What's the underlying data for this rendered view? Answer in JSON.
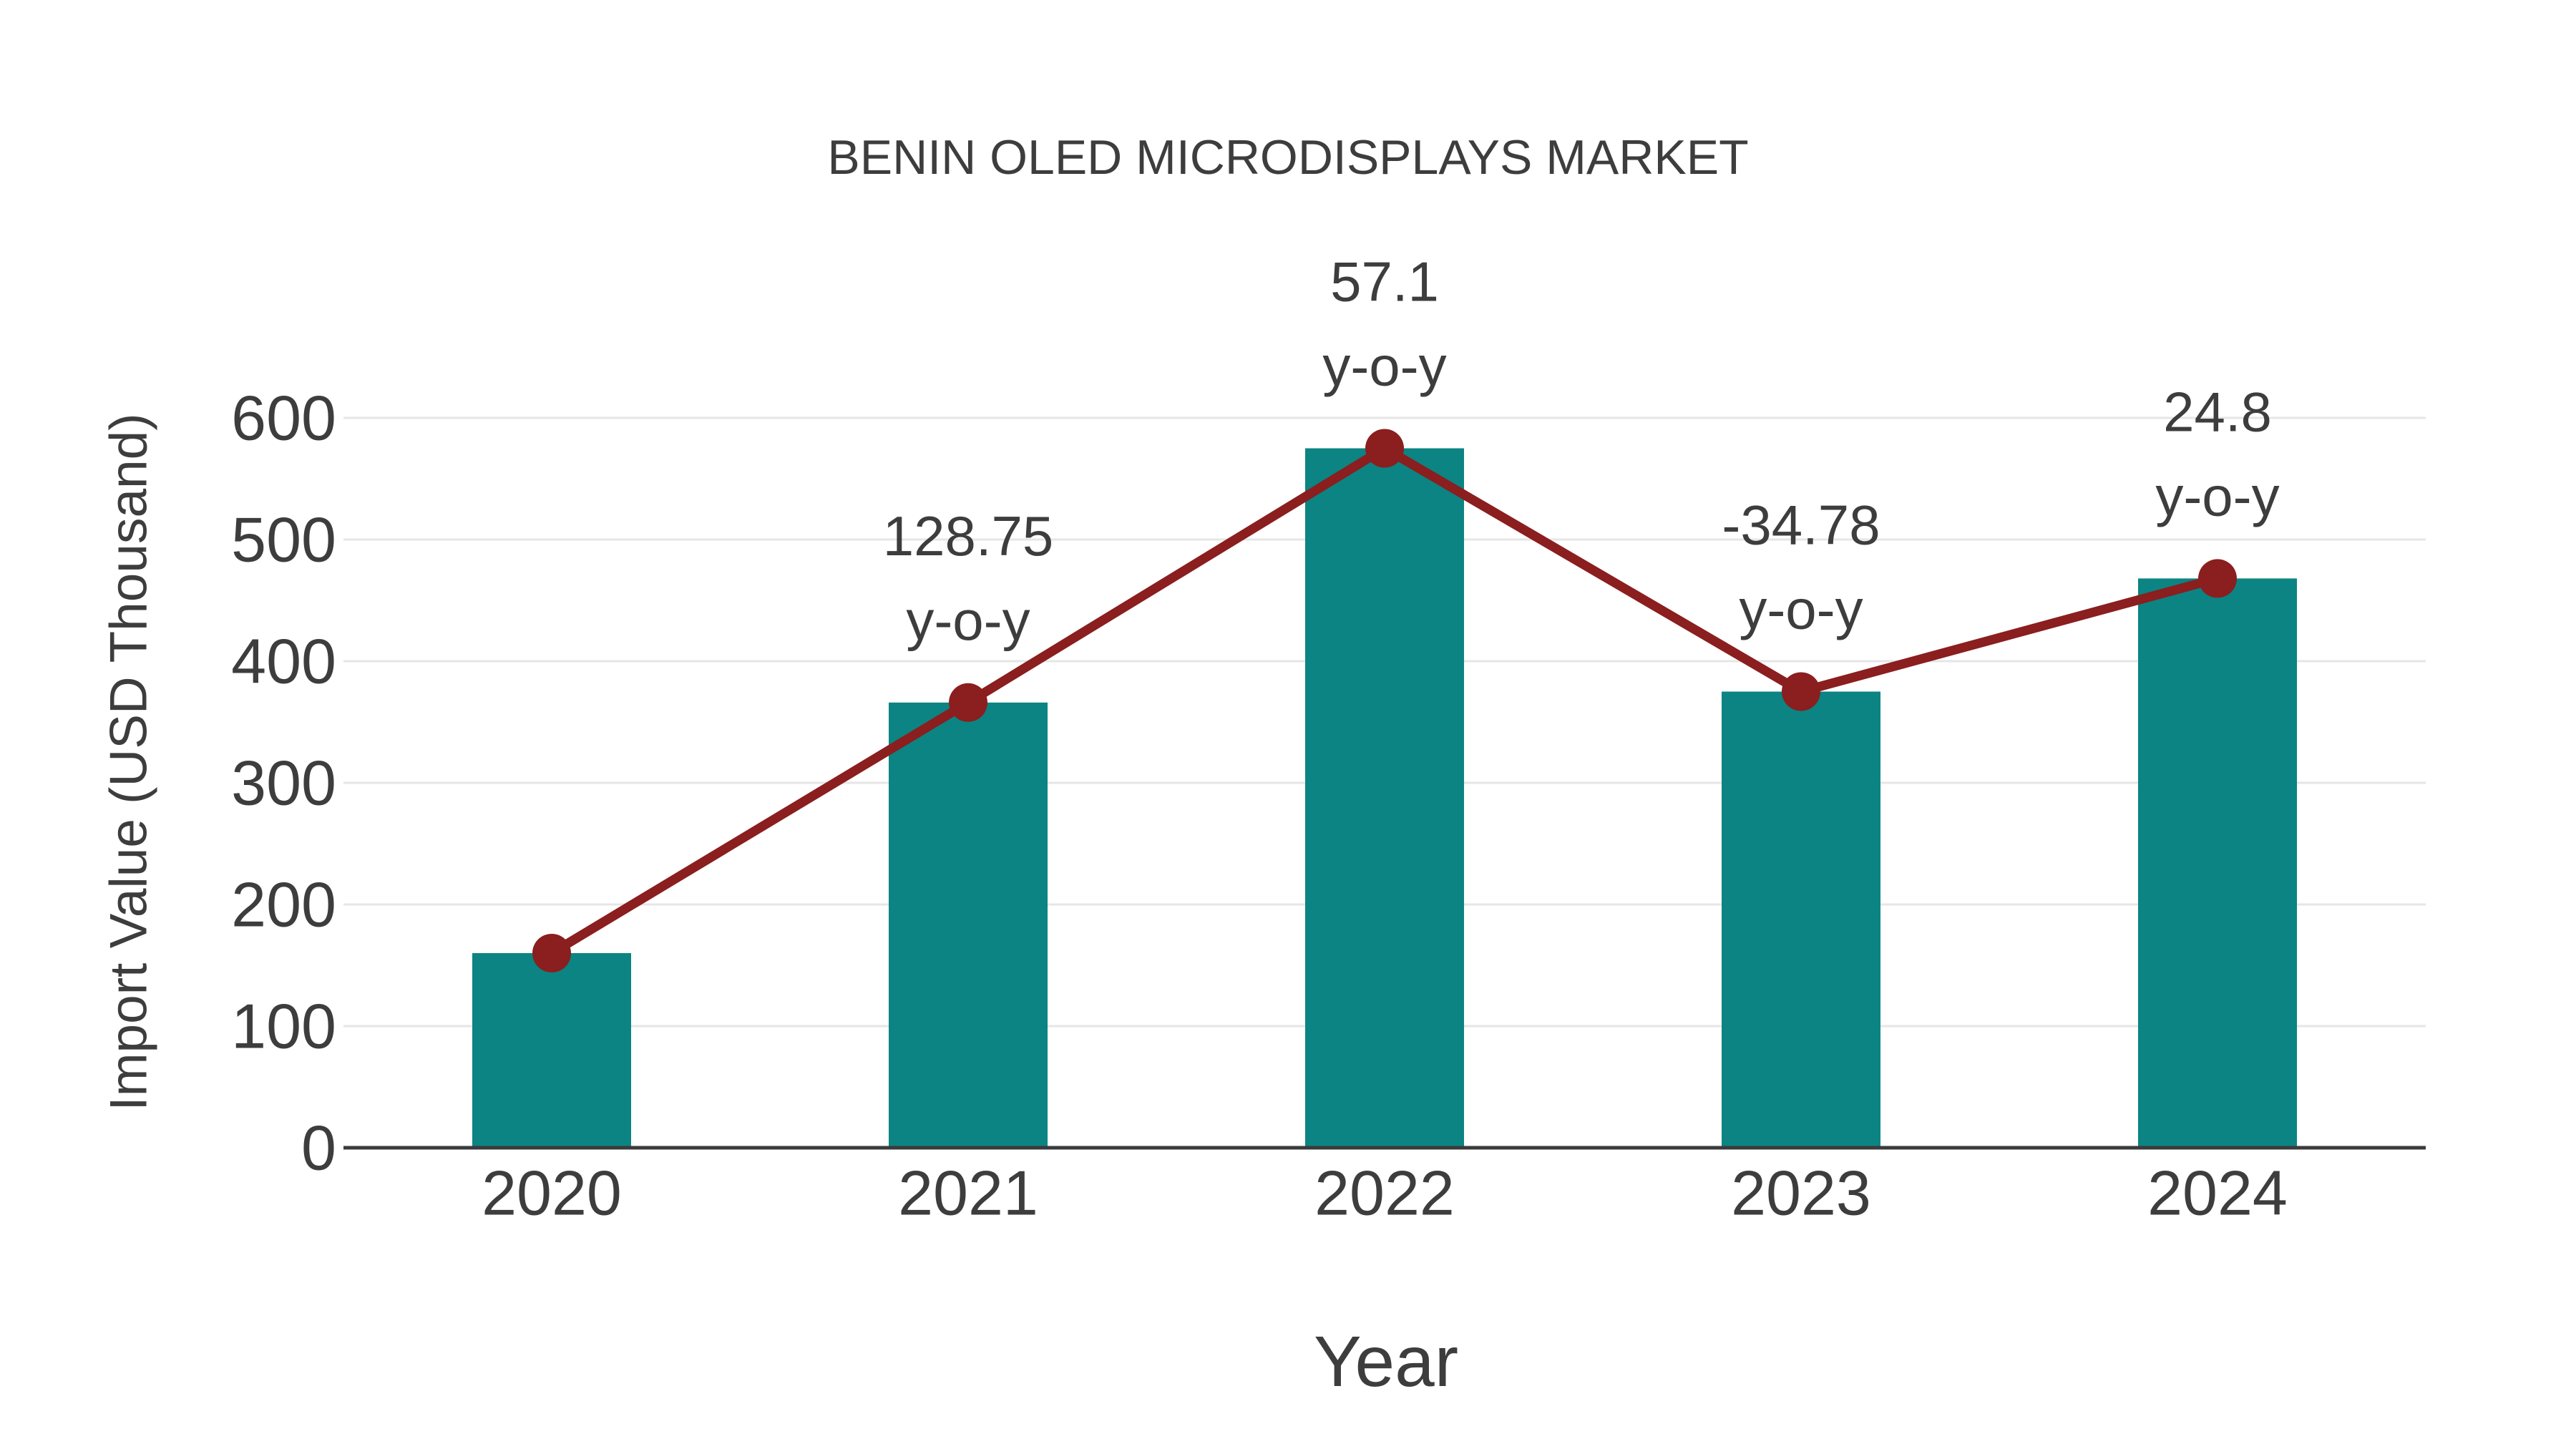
{
  "title": "BENIN OLED MICRODISPLAYS MARKET",
  "colors": {
    "bar": "#0b8483",
    "line": "#8b1e1e",
    "marker": "#8b1e1e",
    "text": "#3d3d3d",
    "grid": "#e6e6e6",
    "axis": "#3a3a3a",
    "background": "#ffffff"
  },
  "chart_data": {
    "type": "bar",
    "title": "BENIN OLED MICRODISPLAYS MARKET",
    "xlabel": "Year",
    "ylabel": "Import Value (USD Thousand)",
    "categories": [
      "2020",
      "2021",
      "2022",
      "2023",
      "2024"
    ],
    "series": [
      {
        "name": "Import Value (USD Thousand)",
        "type": "bar",
        "values": [
          160,
          366,
          575,
          375,
          468
        ]
      },
      {
        "name": "y-o-y trend line",
        "type": "line",
        "values": [
          160,
          366,
          575,
          375,
          468
        ]
      }
    ],
    "annotations": [
      {
        "category": "2021",
        "value": "128.75",
        "label": "y-o-y"
      },
      {
        "category": "2022",
        "value": "57.1",
        "label": "y-o-y"
      },
      {
        "category": "2023",
        "value": "-34.78",
        "label": "y-o-y"
      },
      {
        "category": "2024",
        "value": "24.8",
        "label": "y-o-y"
      }
    ],
    "yticks": [
      0,
      100,
      200,
      300,
      400,
      500,
      600
    ],
    "ylim": [
      0,
      600
    ],
    "grid": "horizontal",
    "legend_position": "none"
  }
}
